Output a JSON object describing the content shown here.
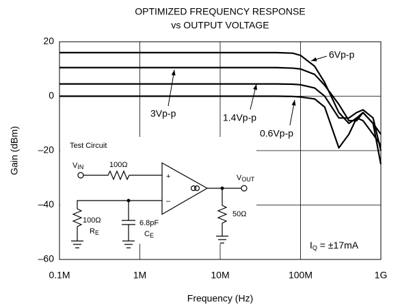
{
  "chart_data": {
    "type": "line",
    "title": "OPTIMIZED FREQUENCY RESPONSE",
    "subtitle": "vs OUTPUT VOLTAGE",
    "x_label": "Frequency (Hz)",
    "y_label": "Gain (dBm)",
    "log_x": true,
    "grid": true,
    "xlim": [
      100000,
      1000000000
    ],
    "xticks": [
      {
        "value": 100000,
        "label": "0.1M"
      },
      {
        "value": 1000000,
        "label": "1M"
      },
      {
        "value": 10000000,
        "label": "10M"
      },
      {
        "value": 100000000,
        "label": "100M"
      },
      {
        "value": 1000000000,
        "label": "1G"
      }
    ],
    "ylim": [
      -60,
      20
    ],
    "yticks": [
      {
        "value": -60,
        "label": "–60"
      },
      {
        "value": -40,
        "label": "–40"
      },
      {
        "value": -20,
        "label": "–20"
      },
      0,
      20
    ],
    "x": [
      100000,
      10000000,
      50000000,
      80000000,
      100000000,
      150000000,
      200000000,
      300000000,
      400000000,
      500000000,
      600000000,
      800000000,
      1000000000
    ],
    "series": [
      {
        "name": "6Vp-p",
        "color": "#000000",
        "values": [
          16,
          16,
          16,
          15.8,
          15,
          11,
          5,
          -6,
          -10,
          -8,
          -9,
          -14,
          -18
        ]
      },
      {
        "name": "3Vp-p",
        "color": "#000000",
        "values": [
          10.5,
          10.5,
          10.5,
          10.3,
          10,
          8,
          4,
          -3,
          -9,
          -9,
          -6,
          -10,
          -14
        ]
      },
      {
        "name": "1.4Vp-p",
        "color": "#000000",
        "values": [
          4.5,
          4.5,
          4.5,
          4.4,
          4.2,
          3,
          0,
          -8,
          -8,
          -6,
          -5,
          -8,
          -20
        ]
      },
      {
        "name": "0.6Vp-p",
        "color": "#000000",
        "values": [
          0,
          0,
          0,
          -0.1,
          -0.3,
          -1,
          -4,
          -19,
          -14,
          -8,
          -6,
          -10,
          -25
        ]
      }
    ],
    "annotation": {
      "main": "I",
      "sub": "Q",
      "rest": " = ±17mA"
    }
  },
  "circuit": {
    "title": "Test Circuit",
    "vin": "V",
    "vin_sub": "IN",
    "r_in": "100Ω",
    "plus": "+",
    "minus": "–",
    "vout": "V",
    "vout_sub": "OUT",
    "r_load": "50Ω",
    "r_e": "100Ω",
    "r_e_name": "R",
    "r_e_sub": "E",
    "c_e": "6.8pF",
    "c_e_name": "C",
    "c_e_sub": "E"
  }
}
